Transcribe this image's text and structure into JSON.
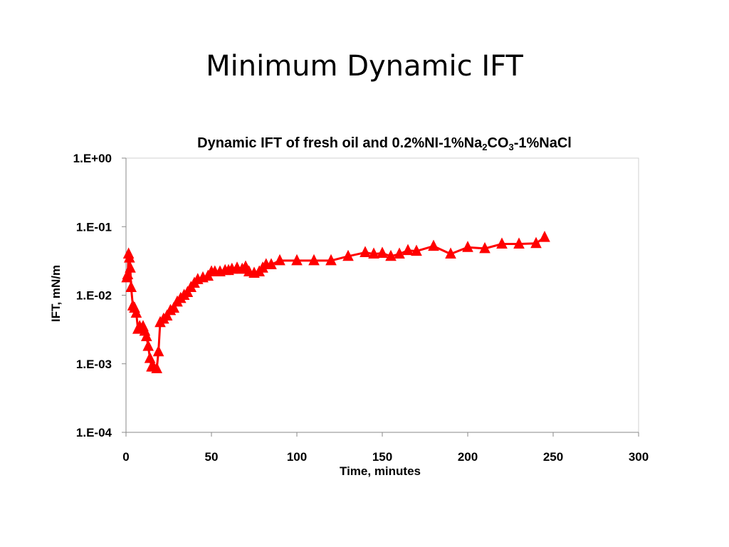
{
  "slide": {
    "title": "Minimum  Dynamic IFT"
  },
  "chart_data": {
    "type": "line",
    "title_main": "Dynamic IFT of fresh oil and 0.2%NI-1%Na",
    "title_sub1": "2",
    "title_mid": "CO",
    "title_sub2": "3",
    "title_end": "-1%NaCl",
    "xlabel": "Time, minutes",
    "ylabel": "IFT, mN/m",
    "xlim": [
      0,
      300
    ],
    "ylim": [
      0.0001,
      1
    ],
    "y_scale": "log",
    "x_ticks": [
      "0",
      "50",
      "100",
      "150",
      "200",
      "250",
      "300"
    ],
    "x_tick_values": [
      0,
      50,
      100,
      150,
      200,
      250,
      300
    ],
    "y_ticks": [
      "1.E+00",
      "1.E-01",
      "1.E-02",
      "1.E-03",
      "1.E-04"
    ],
    "y_tick_values": [
      1,
      0.1,
      0.01,
      0.001,
      0.0001
    ],
    "grid": false,
    "legend": "none",
    "series_color": "#FF0000",
    "series": [
      {
        "x": [
          0.5,
          1,
          1.5,
          2,
          2.5,
          3,
          4,
          5,
          6,
          7,
          8,
          10,
          11,
          12,
          13,
          14,
          15,
          16,
          18,
          19,
          20,
          22,
          24,
          26,
          28,
          30,
          32,
          34,
          36,
          38,
          40,
          42,
          45,
          48,
          50,
          52,
          55,
          58,
          60,
          62,
          65,
          68,
          70,
          72,
          75,
          78,
          80,
          82,
          85,
          90,
          100,
          110,
          120,
          130,
          140,
          145,
          150,
          155,
          160,
          165,
          170,
          180,
          190,
          200,
          210,
          220,
          230,
          240,
          245
        ],
        "y": [
          0.018,
          0.02,
          0.04,
          0.035,
          0.025,
          0.013,
          0.007,
          0.0065,
          0.0055,
          0.0032,
          0.0035,
          0.0035,
          0.003,
          0.0025,
          0.0018,
          0.0012,
          0.0009,
          0.0009,
          0.00085,
          0.0015,
          0.004,
          0.0045,
          0.005,
          0.006,
          0.0065,
          0.008,
          0.009,
          0.01,
          0.011,
          0.013,
          0.015,
          0.017,
          0.018,
          0.019,
          0.022,
          0.022,
          0.022,
          0.023,
          0.023,
          0.024,
          0.025,
          0.024,
          0.026,
          0.022,
          0.021,
          0.022,
          0.025,
          0.028,
          0.028,
          0.032,
          0.032,
          0.032,
          0.032,
          0.037,
          0.042,
          0.04,
          0.041,
          0.037,
          0.04,
          0.045,
          0.044,
          0.052,
          0.04,
          0.05,
          0.048,
          0.056,
          0.056,
          0.057,
          0.07
        ]
      }
    ]
  }
}
